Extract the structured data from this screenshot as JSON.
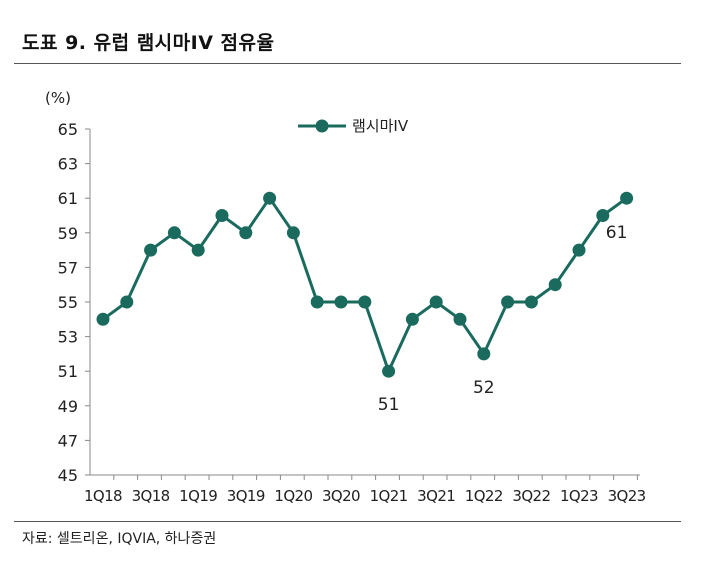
{
  "header": {
    "title": "도표 9. 유럽 램시마IV 점유율"
  },
  "footer": {
    "source": "자료: 셀트리온, IQVIA, 하나증권"
  },
  "colors": {
    "series": "#1a6b5e",
    "axis": "#888888",
    "text": "#222222"
  },
  "chart_data": {
    "type": "line",
    "title": "도표 9. 유럽 램시마IV 점유율",
    "ylabel": "(%)",
    "xlabel": "",
    "ylim": [
      45,
      65
    ],
    "yticks": [
      45,
      47,
      49,
      51,
      53,
      55,
      57,
      59,
      61,
      63,
      65
    ],
    "grid": false,
    "legend": "top-center",
    "x": [
      "1Q18",
      "2Q18",
      "3Q18",
      "4Q18",
      "1Q19",
      "2Q19",
      "3Q19",
      "4Q19",
      "1Q20",
      "2Q20",
      "3Q20",
      "4Q20",
      "1Q21",
      "2Q21",
      "3Q21",
      "4Q21",
      "1Q22",
      "2Q22",
      "3Q22",
      "4Q22",
      "1Q23",
      "2Q23",
      "3Q23"
    ],
    "xtick_labels": [
      "1Q18",
      "3Q18",
      "1Q19",
      "3Q19",
      "1Q20",
      "3Q20",
      "1Q21",
      "3Q21",
      "1Q22",
      "3Q22",
      "1Q23",
      "3Q23"
    ],
    "series": [
      {
        "name": "램시마IV",
        "values": [
          54,
          55,
          58,
          59,
          58,
          60,
          59,
          61,
          59,
          55,
          55,
          55,
          51,
          54,
          55,
          54,
          52,
          55,
          55,
          56,
          58,
          60,
          61
        ]
      }
    ],
    "annotations": [
      {
        "x": "1Q21",
        "text": "51"
      },
      {
        "x": "1Q22",
        "text": "52"
      },
      {
        "x": "3Q23",
        "text": "61"
      }
    ]
  }
}
